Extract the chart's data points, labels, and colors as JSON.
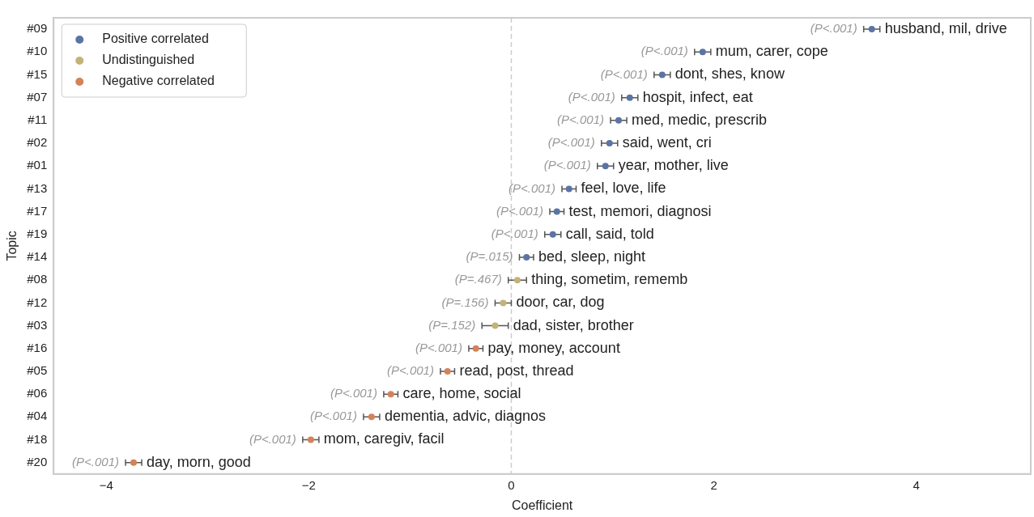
{
  "chart_data": {
    "type": "scatter",
    "orientation": "horizontal",
    "xlabel": "Coefficient",
    "ylabel": "Topic",
    "categories": [
      "#09",
      "#10",
      "#15",
      "#07",
      "#11",
      "#02",
      "#01",
      "#13",
      "#17",
      "#19",
      "#14",
      "#08",
      "#12",
      "#03",
      "#16",
      "#05",
      "#06",
      "#04",
      "#18",
      "#20"
    ],
    "series": [
      {
        "name": "Positive correlated",
        "color": "#5b74a4",
        "values": [
          3.56,
          1.89,
          1.49,
          1.17,
          1.06,
          0.97,
          0.93,
          0.57,
          0.45,
          0.41,
          0.15,
          null,
          null,
          null,
          null,
          null,
          null,
          null,
          null,
          null
        ],
        "errors": [
          0.08,
          0.08,
          0.08,
          0.08,
          0.08,
          0.08,
          0.08,
          0.07,
          0.07,
          0.08,
          0.07,
          null,
          null,
          null,
          null,
          null,
          null,
          null,
          null,
          null
        ]
      },
      {
        "name": "Undistinguished",
        "color": "#c4b276",
        "values": [
          null,
          null,
          null,
          null,
          null,
          null,
          null,
          null,
          null,
          null,
          null,
          0.06,
          -0.08,
          -0.16,
          null,
          null,
          null,
          null,
          null,
          null
        ],
        "errors": [
          null,
          null,
          null,
          null,
          null,
          null,
          null,
          null,
          null,
          null,
          null,
          0.09,
          0.08,
          0.13,
          null,
          null,
          null,
          null,
          null,
          null
        ]
      },
      {
        "name": "Negative correlated",
        "color": "#d4825a",
        "values": [
          null,
          null,
          null,
          null,
          null,
          null,
          null,
          null,
          null,
          null,
          null,
          null,
          null,
          null,
          -0.35,
          -0.63,
          -1.19,
          -1.38,
          -1.98,
          -3.73
        ],
        "errors": [
          null,
          null,
          null,
          null,
          null,
          null,
          null,
          null,
          null,
          null,
          null,
          null,
          null,
          null,
          0.07,
          0.07,
          0.07,
          0.08,
          0.08,
          0.08
        ]
      }
    ],
    "annotations": [
      {
        "text": "(P<.001)",
        "x": 3.56,
        "y": "#09"
      },
      {
        "text": "husband, mil, drive",
        "x": 3.56,
        "y": "#09"
      },
      {
        "text": "(P<.001)",
        "x": 1.89,
        "y": "#10"
      },
      {
        "text": "mum, carer, cope",
        "x": 1.89,
        "y": "#10"
      },
      {
        "text": "(P<.001)",
        "x": 1.49,
        "y": "#15"
      },
      {
        "text": "dont, shes, know",
        "x": 1.49,
        "y": "#15"
      },
      {
        "text": "(P<.001)",
        "x": 1.17,
        "y": "#07"
      },
      {
        "text": "hospit, infect, eat",
        "x": 1.17,
        "y": "#07"
      },
      {
        "text": "(P<.001)",
        "x": 1.06,
        "y": "#11"
      },
      {
        "text": "med, medic, prescrib",
        "x": 1.06,
        "y": "#11"
      },
      {
        "text": "(P<.001)",
        "x": 0.97,
        "y": "#02"
      },
      {
        "text": "said, went, cri",
        "x": 0.97,
        "y": "#02"
      },
      {
        "text": "(P<.001)",
        "x": 0.93,
        "y": "#01"
      },
      {
        "text": "year, mother, live",
        "x": 0.93,
        "y": "#01"
      },
      {
        "text": "(P<.001)",
        "x": 0.57,
        "y": "#13"
      },
      {
        "text": "feel, love, life",
        "x": 0.57,
        "y": "#13"
      },
      {
        "text": "(P<.001)",
        "x": 0.45,
        "y": "#17"
      },
      {
        "text": "test, memori, diagnosi",
        "x": 0.45,
        "y": "#17"
      },
      {
        "text": "(P<.001)",
        "x": 0.41,
        "y": "#19"
      },
      {
        "text": "call, said, told",
        "x": 0.41,
        "y": "#19"
      },
      {
        "text": "(P=.015)",
        "x": 0.15,
        "y": "#14"
      },
      {
        "text": "bed, sleep, night",
        "x": 0.15,
        "y": "#14"
      },
      {
        "text": "(P=.467)",
        "x": 0.06,
        "y": "#08"
      },
      {
        "text": "thing, sometim, rememb",
        "x": 0.06,
        "y": "#08"
      },
      {
        "text": "(P=.156)",
        "x": -0.08,
        "y": "#12"
      },
      {
        "text": "door, car, dog",
        "x": -0.08,
        "y": "#12"
      },
      {
        "text": "(P=.152)",
        "x": -0.16,
        "y": "#03"
      },
      {
        "text": "dad, sister, brother",
        "x": -0.16,
        "y": "#03"
      },
      {
        "text": "(P<.001)",
        "x": -0.35,
        "y": "#16"
      },
      {
        "text": "pay, money, account",
        "x": -0.35,
        "y": "#16"
      },
      {
        "text": "(P<.001)",
        "x": -0.63,
        "y": "#05"
      },
      {
        "text": "read, post, thread",
        "x": -0.63,
        "y": "#05"
      },
      {
        "text": "(P<.001)",
        "x": -1.19,
        "y": "#06"
      },
      {
        "text": "care, home, social",
        "x": -1.19,
        "y": "#06"
      },
      {
        "text": "(P<.001)",
        "x": -1.38,
        "y": "#04"
      },
      {
        "text": "dementia, advic, diagnos",
        "x": -1.38,
        "y": "#04"
      },
      {
        "text": "(P<.001)",
        "x": -1.98,
        "y": "#18"
      },
      {
        "text": "mom, caregiv, facil",
        "x": -1.98,
        "y": "#18"
      },
      {
        "text": "(P<.001)",
        "x": -3.73,
        "y": "#20"
      },
      {
        "text": "day, morn, good",
        "x": -3.73,
        "y": "#20"
      }
    ],
    "xlim": [
      -4.52,
      5.13
    ],
    "xticks": [
      {
        "value": -4,
        "label": "−4"
      },
      {
        "value": -2,
        "label": "−2"
      },
      0,
      2,
      4
    ],
    "ref_lines": [
      {
        "axis": "x",
        "value": 0,
        "color": "#cccccc",
        "line_style": "dashed"
      }
    ],
    "legend": "top left",
    "grid": false,
    "marker": "circle"
  }
}
